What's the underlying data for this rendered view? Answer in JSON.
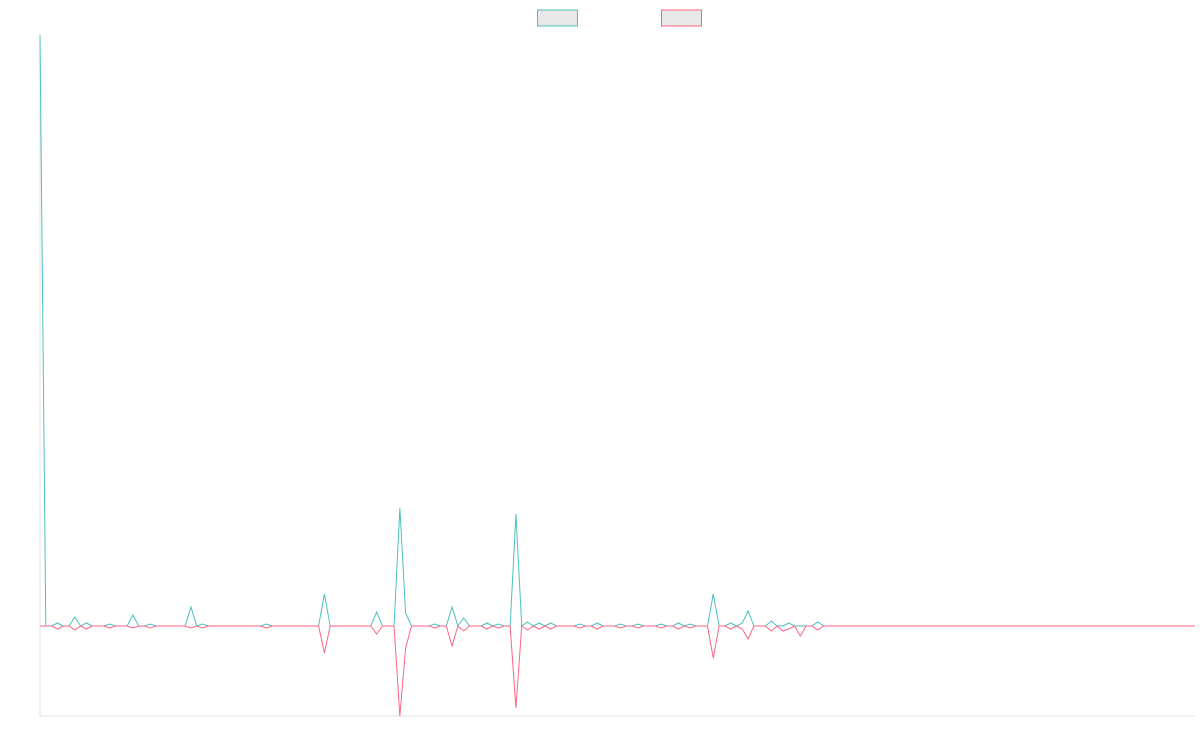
{
  "chart_data": {
    "type": "line",
    "legend": "top",
    "ylim": [
      -9,
      59.1
    ],
    "series": [
      {
        "color": "#4bc0c0",
        "values": [
          59.1,
          0,
          0,
          0.3,
          0,
          0,
          0.9,
          0,
          0.3,
          0,
          0,
          0,
          0.2,
          0,
          0,
          0,
          1.1,
          0,
          0,
          0.2,
          0,
          0,
          0,
          0,
          0,
          0,
          1.9,
          0,
          0.2,
          0,
          0,
          0,
          0,
          0,
          0,
          0,
          0,
          0,
          0,
          0.2,
          0,
          0,
          0,
          0,
          0,
          0,
          0,
          0,
          0,
          3.2,
          0,
          0,
          0,
          0,
          0,
          0,
          0,
          0,
          1.4,
          0,
          0,
          0,
          11.8,
          1.3,
          0,
          0,
          0,
          0,
          0.2,
          0,
          0,
          1.9,
          0,
          0.8,
          0,
          0,
          0,
          0.3,
          0,
          0.2,
          0,
          0,
          11.2,
          0,
          0.4,
          0,
          0.3,
          0,
          0.3,
          0,
          0,
          0,
          0,
          0.2,
          0,
          0,
          0.3,
          0,
          0,
          0,
          0.2,
          0,
          0,
          0.2,
          0,
          0,
          0,
          0.2,
          0,
          0,
          0.3,
          0,
          0.2,
          0,
          0,
          0,
          3.2,
          0,
          0,
          0.3,
          0,
          0.3,
          1.5,
          0,
          0,
          0,
          0.5,
          0,
          0,
          0.3,
          0,
          0,
          0,
          0,
          0.4,
          0,
          0,
          0,
          0,
          0,
          0,
          0,
          0,
          0,
          0,
          0,
          0,
          0,
          0,
          0,
          0,
          0,
          0,
          0,
          0,
          0,
          0,
          0,
          0,
          0,
          0,
          0,
          0,
          0,
          0,
          0,
          0,
          0,
          0,
          0,
          0,
          0,
          0,
          0,
          0,
          0,
          0,
          0,
          0,
          0,
          0,
          0,
          0,
          0,
          0,
          0,
          0,
          0,
          0,
          0,
          0,
          0,
          0,
          0,
          0,
          0,
          0,
          0,
          0,
          0
        ]
      },
      {
        "color": "#ff6384",
        "values": [
          0,
          0,
          0,
          -0.3,
          0,
          0,
          -0.4,
          0,
          -0.3,
          0,
          0,
          0,
          -0.2,
          0,
          0,
          0,
          -0.2,
          0,
          0,
          -0.2,
          0,
          0,
          0,
          0,
          0,
          0,
          -0.2,
          0,
          -0.2,
          0,
          0,
          0,
          0,
          0,
          0,
          0,
          0,
          0,
          0,
          -0.2,
          0,
          0,
          0,
          0,
          0,
          0,
          0,
          0,
          0,
          -2.7,
          0,
          0,
          0,
          0,
          0,
          0,
          0,
          0,
          -0.8,
          0,
          0,
          0,
          -9,
          -2.2,
          0,
          0,
          0,
          0,
          -0.2,
          0,
          0,
          -2,
          0,
          -0.5,
          0,
          0,
          0,
          -0.3,
          0,
          -0.2,
          0,
          0,
          -8.2,
          0,
          -0.4,
          0,
          -0.3,
          0,
          -0.3,
          0,
          0,
          0,
          0,
          -0.2,
          0,
          0,
          -0.3,
          0,
          0,
          0,
          -0.2,
          0,
          0,
          -0.2,
          0,
          0,
          0,
          -0.2,
          0,
          0,
          -0.3,
          0,
          -0.2,
          0,
          0,
          0,
          -3.2,
          0,
          0,
          -0.3,
          0,
          -0.3,
          -1.3,
          0,
          0,
          0,
          -0.5,
          0,
          -0.5,
          -0.3,
          0,
          -1,
          0,
          0,
          -0.4,
          0,
          0,
          0,
          0,
          0,
          0,
          0,
          0,
          0,
          0,
          0,
          0,
          0,
          0,
          0,
          0,
          0,
          0,
          0,
          0,
          0,
          0,
          0,
          0,
          0,
          0,
          0,
          0,
          0,
          0,
          0,
          0,
          0,
          0,
          0,
          0,
          0,
          0,
          0,
          0,
          0,
          0,
          0,
          0,
          0,
          0,
          0,
          0,
          0,
          0,
          0,
          0,
          0,
          0,
          0,
          0,
          0,
          0,
          0,
          0,
          0,
          0,
          0,
          0,
          0
        ]
      }
    ]
  }
}
